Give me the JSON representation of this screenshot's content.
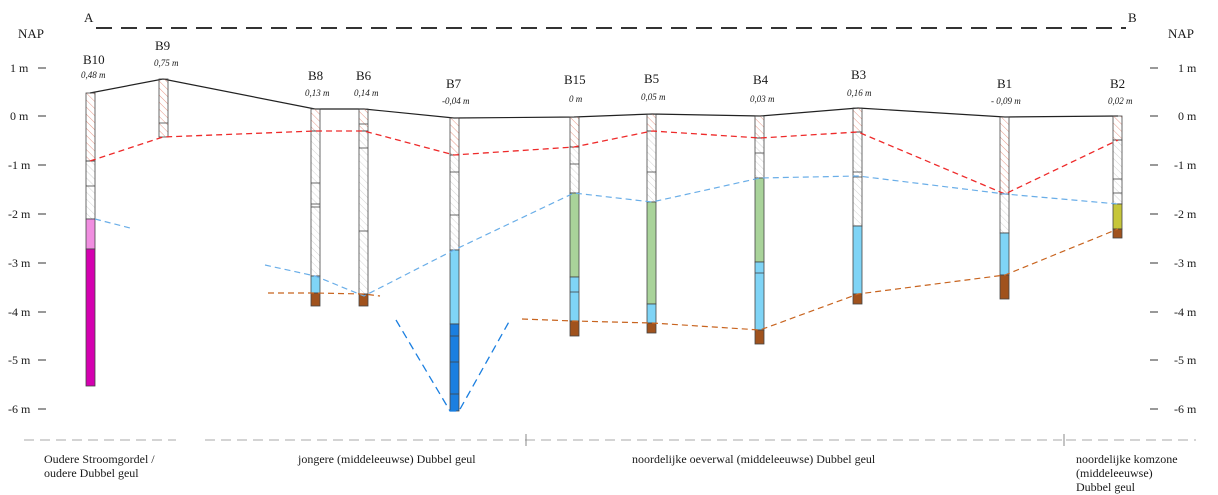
{
  "profile": {
    "start_label": "A",
    "end_label": "B",
    "datum_left": "NAP",
    "datum_right": "NAP",
    "depth_ticks": [
      "1 m",
      "0 m",
      "-1 m",
      "-2 m",
      "-3 m",
      "-4 m",
      "-5 m",
      "-6 m"
    ]
  },
  "boreholes": [
    {
      "id": "B10",
      "elevation": "0,48 m"
    },
    {
      "id": "B9",
      "elevation": "0,75 m"
    },
    {
      "id": "B8",
      "elevation": "0,13 m"
    },
    {
      "id": "B6",
      "elevation": "0,14 m"
    },
    {
      "id": "B7",
      "elevation": "-0,04 m"
    },
    {
      "id": "B15",
      "elevation": "0 m"
    },
    {
      "id": "B5",
      "elevation": "0,05 m"
    },
    {
      "id": "B4",
      "elevation": "0,03 m"
    },
    {
      "id": "B3",
      "elevation": "0,16 m"
    },
    {
      "id": "B1",
      "elevation": "- 0,09 m"
    },
    {
      "id": "B2",
      "elevation": "0,02 m"
    }
  ],
  "sections": {
    "oudere_line1": "Oudere Stroomgordel /",
    "oudere_line2": "oudere Dubbel geul",
    "jongere": "jongere (middeleeuwse) Dubbel geul",
    "oeverwal": "noordelijke oeverwal (middeleeuwse) Dubbel geul",
    "komzone_line1": "noordelijke komzone",
    "komzone_line2": "(middeleeuwse)",
    "komzone_line3": "Dubbel geul"
  },
  "colors": {
    "hatch": "#e89a8a",
    "pink": "#f08ee0",
    "magenta": "#d400b0",
    "green": "#a9d39a",
    "lightblue": "#7fd4f6",
    "blue": "#1b7fe0",
    "brown": "#a0521d",
    "olive": "#c6c63a",
    "red_line": "#ee2a2a",
    "blue_line": "#6aaee8",
    "orange_line": "#c8641f"
  }
}
